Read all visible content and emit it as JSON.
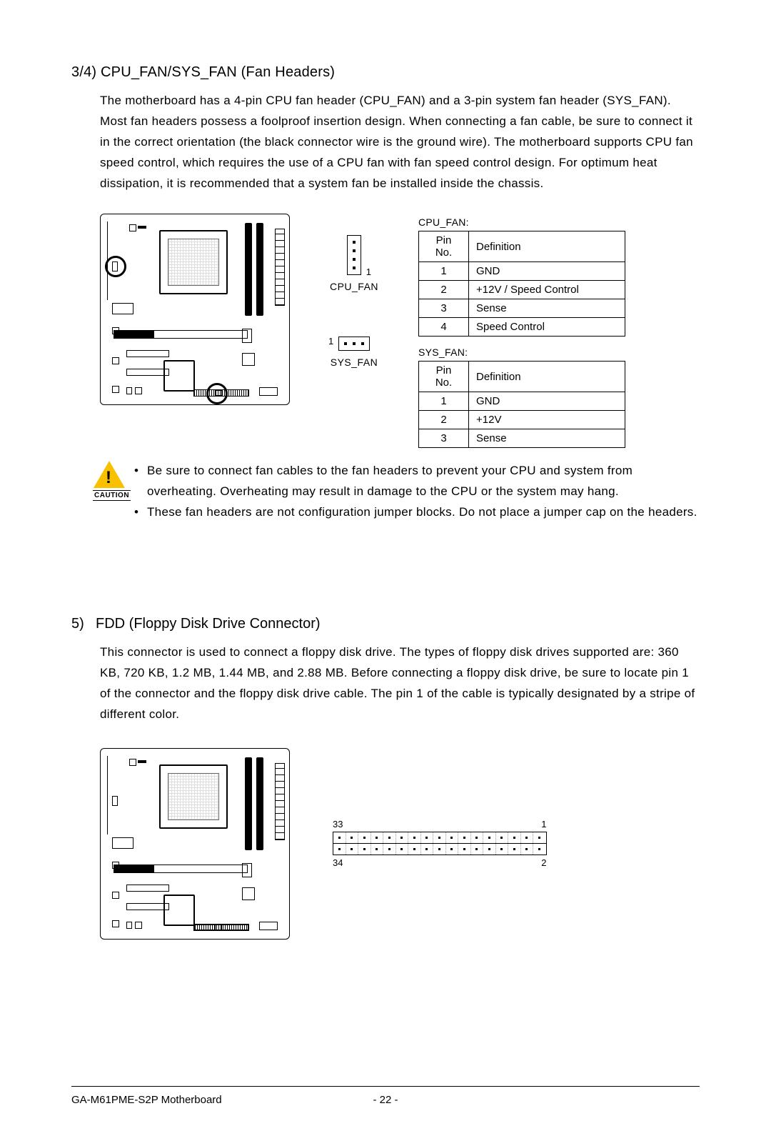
{
  "section1": {
    "title": "3/4) CPU_FAN/SYS_FAN (Fan Headers)",
    "body": "The motherboard has a 4-pin CPU fan header (CPU_FAN) and a 3-pin system fan header (SYS_FAN). Most fan headers possess a foolproof insertion design. When connecting a fan cable, be sure to connect it in the correct orientation (the black connector wire is the ground wire). The motherboard supports CPU fan speed control, which requires the use of a CPU fan with fan speed control design. For optimum heat dissipation, it is recommended that a system fan be installed inside the chassis."
  },
  "cpu_fan": {
    "label": "CPU_FAN",
    "pin_marker": "1",
    "caption": "CPU_FAN:",
    "header": {
      "c1": "Pin No.",
      "c2": "Definition"
    },
    "rows": [
      {
        "pin": "1",
        "def": "GND"
      },
      {
        "pin": "2",
        "def": "+12V / Speed Control"
      },
      {
        "pin": "3",
        "def": "Sense"
      },
      {
        "pin": "4",
        "def": "Speed Control"
      }
    ]
  },
  "sys_fan": {
    "label": "SYS_FAN",
    "pin_marker": "1",
    "caption": "SYS_FAN:",
    "header": {
      "c1": "Pin No.",
      "c2": "Definition"
    },
    "rows": [
      {
        "pin": "1",
        "def": "GND"
      },
      {
        "pin": "2",
        "def": "+12V"
      },
      {
        "pin": "3",
        "def": "Sense"
      }
    ]
  },
  "caution": {
    "label": "CAUTION",
    "items": [
      "Be sure to connect fan cables to the fan headers to prevent your CPU and system from overheating. Overheating may result in damage to the CPU or the system may hang.",
      "These fan headers are not configuration jumper blocks. Do not place a jumper cap on the headers."
    ]
  },
  "section2": {
    "num": "5)",
    "title": "FDD (Floppy Disk Drive Connector)",
    "body": "This connector is used to connect a floppy disk drive. The types of floppy disk drives supported are: 360 KB, 720 KB, 1.2 MB, 1.44 MB, and 2.88 MB. Before connecting a floppy disk drive, be sure to locate pin 1 of the connector and the floppy disk drive cable. The pin 1 of the cable is typically designated by a stripe of different color."
  },
  "fdd_pins": {
    "tl": "33",
    "tr": "1",
    "bl": "34",
    "br": "2",
    "count_per_row": 17
  },
  "footer": {
    "left": "GA-M61PME-S2P Motherboard",
    "page": "- 22 -"
  },
  "style": {
    "page_bg": "#ffffff",
    "text_color": "#000000",
    "caution_color": "#f9c000",
    "body_fontsize": 17,
    "title_fontsize": 20,
    "small_fontsize": 14,
    "table_fontsize": 15
  }
}
